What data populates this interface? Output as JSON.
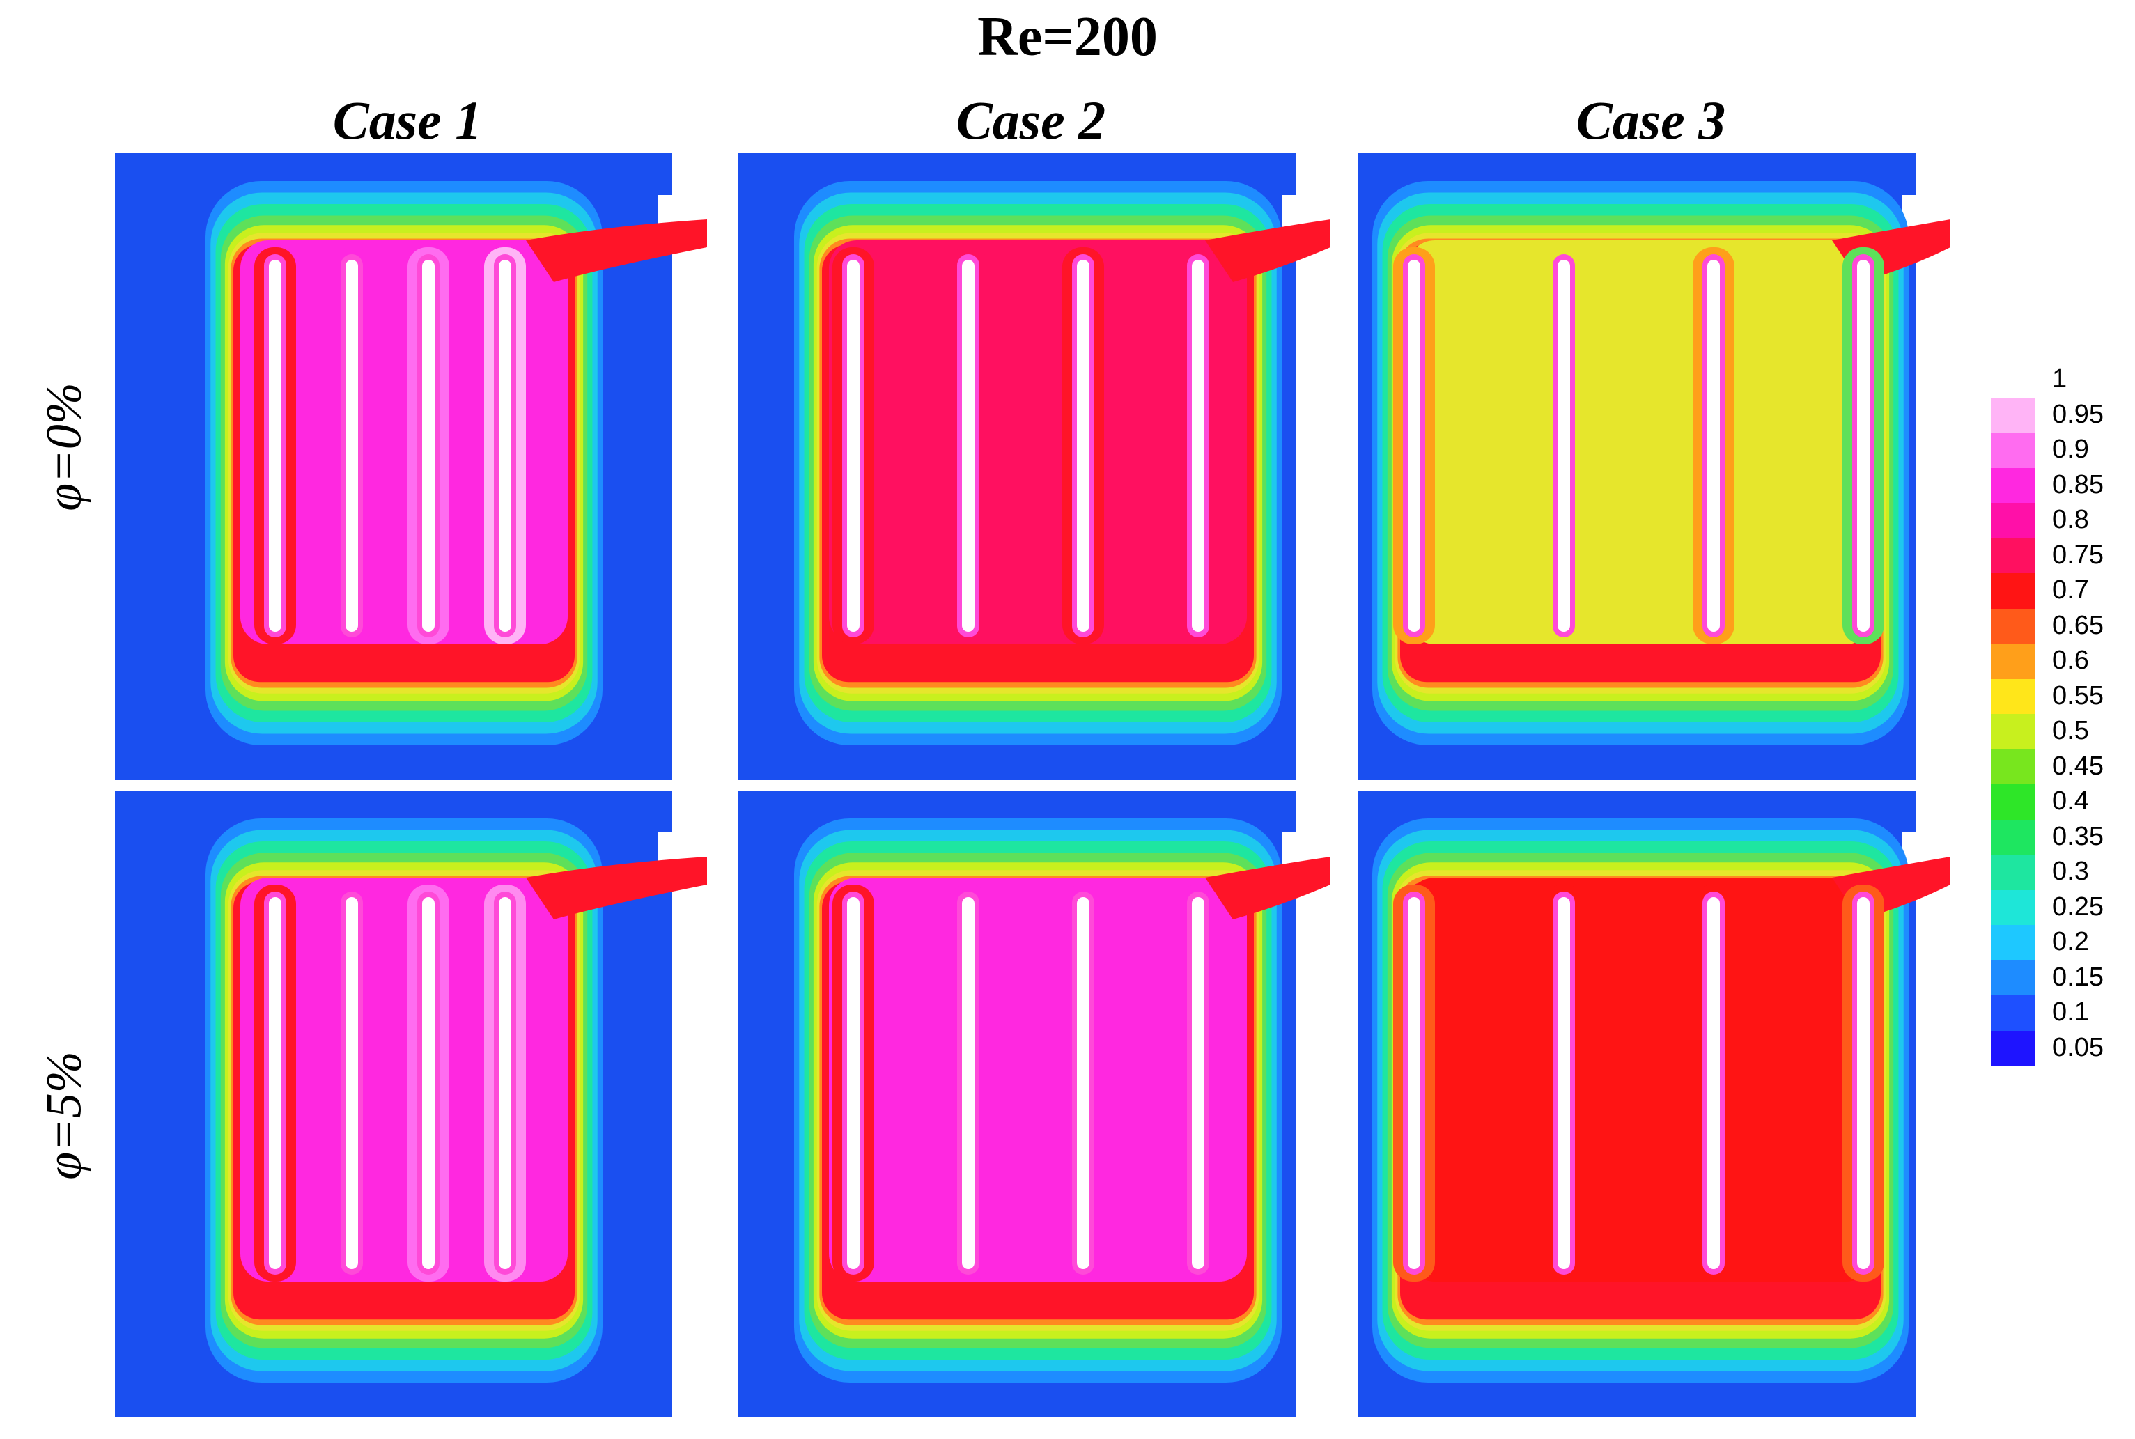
{
  "title": "Re=200",
  "columns": [
    "Case 1",
    "Case 2",
    "Case 3"
  ],
  "rows": [
    "φ=0%",
    "φ=5%"
  ],
  "colors": {
    "background": "#1a4ff0",
    "cyan": "#1ec8ee",
    "green": "#5ee05a",
    "yellow": "#e6e62c",
    "orange": "#ff8a20",
    "red": "#ff1428",
    "magenta": "#ff4ad8",
    "pink": "#ff8af0",
    "white": "#ffffff"
  },
  "legend": {
    "labels": [
      "1",
      "0.95",
      "0.9",
      "0.85",
      "0.8",
      "0.75",
      "0.7",
      "0.65",
      "0.6",
      "0.55",
      "0.5",
      "0.45",
      "0.4",
      "0.35",
      "0.3",
      "0.25",
      "0.2",
      "0.15",
      "0.1",
      "0.05"
    ],
    "swatches": [
      "#ffffff",
      "#ffb4f6",
      "#ff6cf0",
      "#ff28e0",
      "#ff10a8",
      "#ff1060",
      "#ff1414",
      "#ff5a1a",
      "#ff9f1a",
      "#ffe61a",
      "#c8f01e",
      "#78e61e",
      "#2ee628",
      "#1ee660",
      "#1ee6a0",
      "#1ee6d8",
      "#1ec8ff",
      "#1e8cff",
      "#1e50ff",
      "#1e14ff"
    ]
  }
}
